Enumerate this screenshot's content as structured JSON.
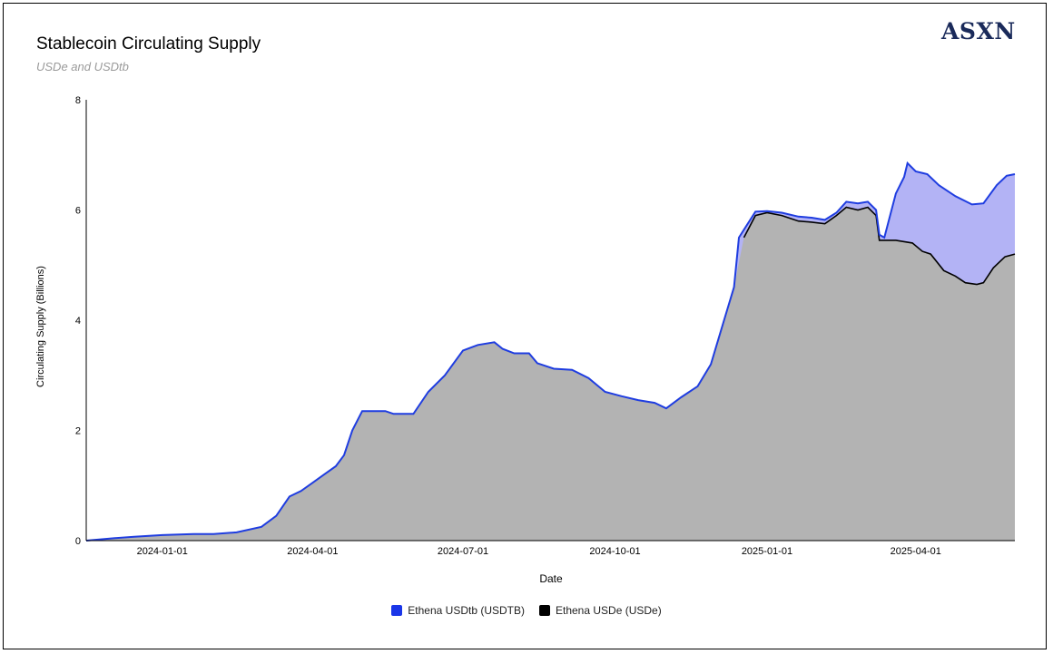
{
  "header": {
    "title": "Stablecoin Circulating Supply",
    "subtitle": "USDe and USDtb",
    "brand": "ASXN"
  },
  "colors": {
    "usdtb_line": "#1f3de0",
    "usdtb_fill": "#b3b3f5",
    "usde_line": "#000000",
    "usde_fill": "#b3b3b3",
    "legend_usdtb": "#1a36e8",
    "legend_usde": "#000000"
  },
  "chart_data": {
    "type": "area",
    "title": "Stablecoin Circulating Supply",
    "subtitle": "USDe and USDtb",
    "xlabel": "Date",
    "ylabel": "Circulating Supply (Billions)",
    "ylim": [
      0,
      8
    ],
    "yticks": [
      0,
      2,
      4,
      6,
      8
    ],
    "xlim": [
      "2023-11-16",
      "2025-05-31"
    ],
    "xticks": [
      "2024-01-01",
      "2024-04-01",
      "2024-07-01",
      "2024-10-01",
      "2025-01-01",
      "2025-04-01"
    ],
    "stacked": true,
    "legend": [
      "Ethena USDtb (USDTB)",
      "Ethena USDe (USDe)"
    ],
    "series": [
      {
        "name": "Ethena USDe (USDe)",
        "points": [
          [
            "2023-11-16",
            0.0
          ],
          [
            "2023-12-01",
            0.04
          ],
          [
            "2023-12-15",
            0.07
          ],
          [
            "2024-01-01",
            0.1
          ],
          [
            "2024-01-20",
            0.12
          ],
          [
            "2024-02-01",
            0.12
          ],
          [
            "2024-02-15",
            0.15
          ],
          [
            "2024-03-01",
            0.25
          ],
          [
            "2024-03-10",
            0.45
          ],
          [
            "2024-03-18",
            0.8
          ],
          [
            "2024-03-25",
            0.9
          ],
          [
            "2024-04-01",
            1.05
          ],
          [
            "2024-04-08",
            1.2
          ],
          [
            "2024-04-15",
            1.35
          ],
          [
            "2024-04-20",
            1.55
          ],
          [
            "2024-04-25",
            2.0
          ],
          [
            "2024-05-01",
            2.35
          ],
          [
            "2024-05-15",
            2.35
          ],
          [
            "2024-05-20",
            2.3
          ],
          [
            "2024-06-01",
            2.3
          ],
          [
            "2024-06-10",
            2.7
          ],
          [
            "2024-06-20",
            3.0
          ],
          [
            "2024-07-01",
            3.45
          ],
          [
            "2024-07-10",
            3.55
          ],
          [
            "2024-07-20",
            3.6
          ],
          [
            "2024-07-25",
            3.48
          ],
          [
            "2024-08-01",
            3.4
          ],
          [
            "2024-08-10",
            3.4
          ],
          [
            "2024-08-15",
            3.22
          ],
          [
            "2024-08-25",
            3.12
          ],
          [
            "2024-09-05",
            3.1
          ],
          [
            "2024-09-15",
            2.95
          ],
          [
            "2024-09-25",
            2.7
          ],
          [
            "2024-10-05",
            2.62
          ],
          [
            "2024-10-15",
            2.55
          ],
          [
            "2024-10-25",
            2.5
          ],
          [
            "2024-11-01",
            2.4
          ],
          [
            "2024-11-10",
            2.6
          ],
          [
            "2024-11-20",
            2.8
          ],
          [
            "2024-11-28",
            3.2
          ],
          [
            "2024-12-05",
            3.9
          ],
          [
            "2024-12-12",
            4.6
          ],
          [
            "2024-12-18",
            5.5
          ],
          [
            "2024-12-25",
            5.9
          ],
          [
            "2025-01-01",
            5.95
          ],
          [
            "2025-01-10",
            5.9
          ],
          [
            "2025-01-20",
            5.8
          ],
          [
            "2025-01-28",
            5.78
          ],
          [
            "2025-02-05",
            5.75
          ],
          [
            "2025-02-12",
            5.9
          ],
          [
            "2025-02-18",
            6.05
          ],
          [
            "2025-02-25",
            6.0
          ],
          [
            "2025-03-03",
            6.05
          ],
          [
            "2025-03-08",
            5.9
          ],
          [
            "2025-03-10",
            5.45
          ],
          [
            "2025-03-20",
            5.45
          ],
          [
            "2025-03-30",
            5.4
          ],
          [
            "2025-04-05",
            5.25
          ],
          [
            "2025-04-10",
            5.2
          ],
          [
            "2025-04-18",
            4.9
          ],
          [
            "2025-04-25",
            4.8
          ],
          [
            "2025-05-01",
            4.68
          ],
          [
            "2025-05-08",
            4.65
          ],
          [
            "2025-05-12",
            4.68
          ],
          [
            "2025-05-18",
            4.95
          ],
          [
            "2025-05-25",
            5.15
          ],
          [
            "2025-05-31",
            5.2
          ]
        ]
      },
      {
        "name": "Ethena USDtb (USDTB)",
        "note": "stacked on top of USDe; values are stack totals",
        "points": [
          [
            "2024-12-15",
            5.5
          ],
          [
            "2024-12-25",
            5.97
          ],
          [
            "2025-01-01",
            5.98
          ],
          [
            "2025-01-10",
            5.95
          ],
          [
            "2025-01-20",
            5.88
          ],
          [
            "2025-01-28",
            5.86
          ],
          [
            "2025-02-05",
            5.82
          ],
          [
            "2025-02-12",
            5.95
          ],
          [
            "2025-02-18",
            6.15
          ],
          [
            "2025-02-25",
            6.12
          ],
          [
            "2025-03-03",
            6.15
          ],
          [
            "2025-03-08",
            6.0
          ],
          [
            "2025-03-10",
            5.55
          ],
          [
            "2025-03-13",
            5.5
          ],
          [
            "2025-03-20",
            6.3
          ],
          [
            "2025-03-25",
            6.6
          ],
          [
            "2025-03-27",
            6.85
          ],
          [
            "2025-04-01",
            6.7
          ],
          [
            "2025-04-08",
            6.65
          ],
          [
            "2025-04-15",
            6.45
          ],
          [
            "2025-04-25",
            6.25
          ],
          [
            "2025-05-05",
            6.1
          ],
          [
            "2025-05-12",
            6.12
          ],
          [
            "2025-05-20",
            6.45
          ],
          [
            "2025-05-26",
            6.62
          ],
          [
            "2025-05-31",
            6.65
          ]
        ]
      }
    ]
  }
}
